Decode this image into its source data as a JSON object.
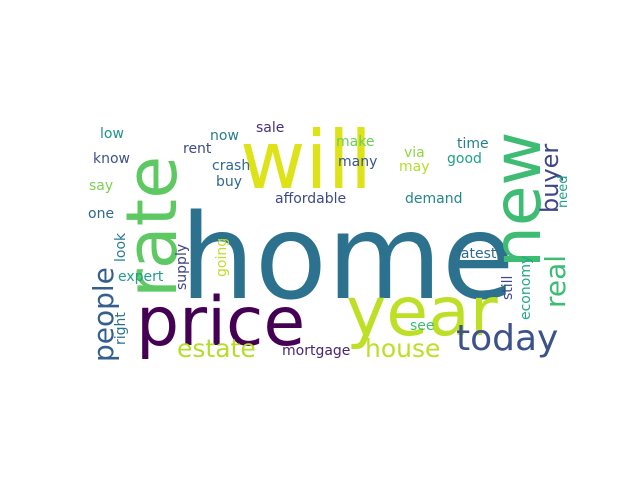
{
  "words": [
    {
      "text": "home",
      "color": "#2c728e"
    },
    {
      "text": "will",
      "color": "#dde318"
    },
    {
      "text": "price",
      "color": "#440154"
    },
    {
      "text": "year",
      "color": "#bddf26"
    },
    {
      "text": "rate",
      "color": "#5ec962"
    },
    {
      "text": "new",
      "color": "#3fbc73"
    },
    {
      "text": "today",
      "color": "#3b528b"
    },
    {
      "text": "estate",
      "color": "#b5de2b"
    },
    {
      "text": "house",
      "color": "#bddf26"
    },
    {
      "text": "people",
      "color": "#355f8d"
    },
    {
      "text": "real",
      "color": "#3dbc74"
    },
    {
      "text": "buyer",
      "color": "#404688"
    },
    {
      "text": "affordable",
      "color": "#3e4989"
    },
    {
      "text": "mortgage",
      "color": "#482475"
    },
    {
      "text": "demand",
      "color": "#23888e"
    },
    {
      "text": "latest",
      "color": "#31688e"
    },
    {
      "text": "crash",
      "color": "#31688e"
    },
    {
      "text": "rent",
      "color": "#3e4989"
    },
    {
      "text": "buy",
      "color": "#31688e"
    },
    {
      "text": "now",
      "color": "#287c8e"
    },
    {
      "text": "sale",
      "color": "#46327e"
    },
    {
      "text": "make",
      "color": "#6ccd5a"
    },
    {
      "text": "many",
      "color": "#3b528b"
    },
    {
      "text": "via",
      "color": "#8fd744"
    },
    {
      "text": "may",
      "color": "#b5de2b"
    },
    {
      "text": "time",
      "color": "#277f8e"
    },
    {
      "text": "good",
      "color": "#1fa088"
    },
    {
      "text": "low",
      "color": "#21918c"
    },
    {
      "text": "know",
      "color": "#3b528b"
    },
    {
      "text": "say",
      "color": "#7ad151"
    },
    {
      "text": "one",
      "color": "#31688e"
    },
    {
      "text": "look",
      "color": "#287c8e"
    },
    {
      "text": "expert",
      "color": "#1f9e89"
    },
    {
      "text": "right",
      "color": "#2c728e"
    },
    {
      "text": "supply",
      "color": "#414487"
    },
    {
      "text": "going",
      "color": "#bddf26"
    },
    {
      "text": "see",
      "color": "#3dbc74"
    },
    {
      "text": "still",
      "color": "#3e4989"
    },
    {
      "text": "economy",
      "color": "#22a884"
    },
    {
      "text": "need",
      "color": "#20a486"
    }
  ]
}
